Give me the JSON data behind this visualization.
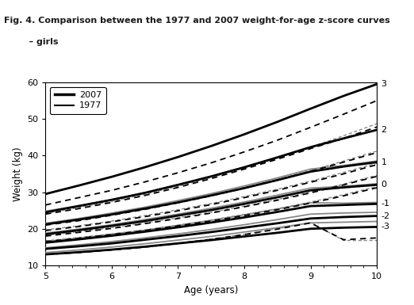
{
  "title_line1": "Fig. 4. Comparison between the 1977 and 2007 weight-for-age z-score curves",
  "title_line2": "    – girls",
  "xlabel": "Age (years)",
  "ylabel": "Weight (kg)",
  "xlim": [
    5,
    10
  ],
  "ylim": [
    10,
    60
  ],
  "xticks": [
    5,
    6,
    7,
    8,
    9,
    10
  ],
  "yticks": [
    10,
    20,
    30,
    40,
    50,
    60
  ],
  "ages": [
    5,
    5.5,
    6,
    6.5,
    7,
    7.5,
    8,
    8.5,
    9,
    9.5,
    10
  ],
  "zscore_labels": [
    "3",
    "2",
    "1",
    "0",
    "-1",
    "-2",
    "-3"
  ],
  "zscore_label_y_at_10": {
    "3": 59.5,
    "2": 47.0,
    "1": 38.2,
    "0": 32.0,
    "-1": 26.8,
    "-2": 23.5,
    "-3": 20.5
  },
  "who2007": {
    "3": [
      29.5,
      31.8,
      34.2,
      36.8,
      39.6,
      42.6,
      45.8,
      49.2,
      52.8,
      56.3,
      59.5
    ],
    "2": [
      24.5,
      26.2,
      27.9,
      29.8,
      32.0,
      34.3,
      36.8,
      39.5,
      42.3,
      44.7,
      47.0
    ],
    "1": [
      21.2,
      22.5,
      23.9,
      25.5,
      27.2,
      29.1,
      31.1,
      33.3,
      35.6,
      37.0,
      38.2
    ],
    "0": [
      18.5,
      19.6,
      20.8,
      22.1,
      23.6,
      25.1,
      26.8,
      28.6,
      30.5,
      31.3,
      32.0
    ],
    "-1": [
      16.2,
      17.1,
      18.1,
      19.2,
      20.4,
      21.7,
      23.1,
      24.6,
      26.2,
      26.5,
      26.8
    ],
    "-2": [
      14.5,
      15.2,
      16.0,
      17.0,
      18.0,
      19.1,
      20.3,
      21.5,
      22.8,
      23.2,
      23.5
    ],
    "-3": [
      13.0,
      13.6,
      14.3,
      15.1,
      16.0,
      16.9,
      17.9,
      18.9,
      20.0,
      20.3,
      20.5
    ]
  },
  "nchs1977_solid": {
    "3": [
      26.5,
      28.5,
      30.5,
      32.8,
      35.3,
      38.0,
      41.0,
      44.2,
      47.7,
      51.3,
      55.0
    ],
    "2": [
      24.0,
      25.5,
      27.2,
      29.1,
      31.3,
      33.7,
      36.3,
      39.0,
      41.9,
      44.7,
      47.8
    ],
    "1": [
      21.0,
      22.2,
      23.7,
      25.3,
      27.1,
      29.0,
      31.1,
      33.3,
      35.7,
      38.2,
      40.8
    ],
    "0": [
      19.5,
      20.6,
      21.9,
      23.3,
      24.9,
      26.6,
      28.5,
      30.5,
      32.7,
      35.0,
      37.5
    ],
    "-1": [
      18.0,
      19.0,
      20.1,
      21.4,
      22.8,
      24.3,
      26.0,
      27.8,
      29.8,
      32.0,
      34.3
    ],
    "-2": [
      16.5,
      17.4,
      18.4,
      19.5,
      20.8,
      22.1,
      23.6,
      25.2,
      27.0,
      29.0,
      31.2
    ],
    "-3": [
      13.0,
      13.5,
      14.2,
      15.0,
      16.0,
      17.1,
      18.4,
      19.9,
      21.6,
      17.0,
      17.5
    ]
  },
  "who2007_gray": {
    "2": [
      24.8,
      26.3,
      28.0,
      29.9,
      32.0,
      34.3,
      36.8,
      39.4,
      42.2,
      44.6,
      47.0
    ],
    "1": [
      21.5,
      22.8,
      24.3,
      25.9,
      27.7,
      29.6,
      31.7,
      33.9,
      36.3,
      37.3,
      38.5
    ],
    "0": [
      18.8,
      19.9,
      21.1,
      22.5,
      24.0,
      25.6,
      27.3,
      29.2,
      31.1,
      31.6,
      32.3
    ],
    "-1": [
      16.5,
      17.4,
      18.5,
      19.6,
      20.9,
      22.3,
      23.8,
      25.4,
      27.1,
      27.0,
      27.2
    ],
    "-2": [
      14.8,
      15.6,
      16.5,
      17.5,
      18.6,
      19.8,
      21.1,
      22.5,
      24.0,
      24.3,
      24.5
    ],
    "-3": [
      13.5,
      14.2,
      15.0,
      15.9,
      16.9,
      17.9,
      19.1,
      20.3,
      21.6,
      21.8,
      22.0
    ]
  },
  "nchs1977_gray_dashed": {
    "2": [
      24.2,
      25.8,
      27.5,
      29.4,
      31.6,
      34.0,
      36.6,
      39.4,
      42.3,
      45.4,
      48.7
    ],
    "1": [
      21.2,
      22.5,
      23.9,
      25.5,
      27.3,
      29.2,
      31.3,
      33.5,
      35.9,
      38.5,
      41.2
    ],
    "0": [
      19.7,
      20.8,
      22.1,
      23.6,
      25.2,
      26.9,
      28.8,
      30.8,
      33.0,
      35.4,
      37.9
    ],
    "-1": [
      18.2,
      19.2,
      20.3,
      21.6,
      23.0,
      24.5,
      26.2,
      28.0,
      30.0,
      32.2,
      34.6
    ],
    "-2": [
      16.7,
      17.6,
      18.6,
      19.7,
      21.0,
      22.4,
      23.9,
      25.5,
      27.3,
      29.3,
      31.5
    ],
    "-3": [
      13.0,
      13.5,
      14.2,
      15.0,
      16.0,
      17.2,
      18.5,
      20.0,
      21.7,
      16.8,
      16.8
    ]
  },
  "black": "#000000",
  "gray": "#888888",
  "lw_2007_black": 2.0,
  "lw_1977_black": 1.3,
  "lw_2007_gray": 1.3,
  "lw_1977_gray": 1.0,
  "background_color": "#ffffff",
  "title_fontsize": 8.0,
  "axis_fontsize": 8.5,
  "tick_fontsize": 8.0,
  "legend_fontsize": 8.0
}
